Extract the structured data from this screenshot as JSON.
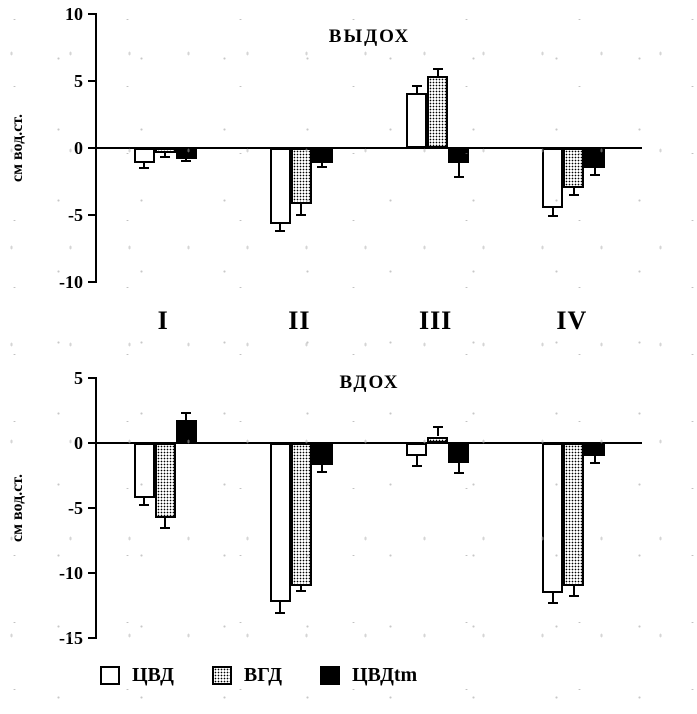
{
  "legend": {
    "items": [
      {
        "label": "ЦВД",
        "style": "white"
      },
      {
        "label": "ВГД",
        "style": "hatch"
      },
      {
        "label": "ЦВДtm",
        "style": "black"
      }
    ]
  },
  "chart_data": [
    {
      "type": "bar",
      "title": "ВЫДОХ",
      "ylabel": "см вод.ст.",
      "ylim": [
        -10,
        10
      ],
      "yticks": [
        10,
        5,
        0,
        -5,
        -10
      ],
      "categories": [
        "I",
        "II",
        "III",
        "IV"
      ],
      "show_category_labels": true,
      "grid": false,
      "legend_position": "bottom",
      "series": [
        {
          "name": "ЦВД",
          "style": "white",
          "values": [
            -1.1,
            -5.7,
            4.1,
            -4.5
          ],
          "errors": [
            0.4,
            0.5,
            0.5,
            0.6
          ]
        },
        {
          "name": "ВГД",
          "style": "hatch",
          "values": [
            -0.4,
            -4.2,
            5.4,
            -3.0
          ],
          "errors": [
            0.3,
            0.8,
            0.5,
            0.5
          ]
        },
        {
          "name": "ЦВДtm",
          "style": "black",
          "values": [
            -0.8,
            -1.1,
            -1.1,
            -1.5
          ],
          "errors": [
            0.2,
            0.3,
            1.1,
            0.5
          ]
        }
      ]
    },
    {
      "type": "bar",
      "title": "ВДОХ",
      "ylabel": "см вод.ст.",
      "ylim": [
        -15,
        5
      ],
      "yticks": [
        5,
        0,
        -5,
        -10,
        -15
      ],
      "categories": [
        "I",
        "II",
        "III",
        "IV"
      ],
      "show_category_labels": false,
      "grid": false,
      "legend_position": "bottom",
      "series": [
        {
          "name": "ЦВД",
          "style": "white",
          "values": [
            -4.2,
            -12.2,
            -1.0,
            -11.5
          ],
          "errors": [
            0.6,
            0.9,
            0.8,
            0.8
          ]
        },
        {
          "name": "ВГД",
          "style": "hatch",
          "values": [
            -5.8,
            -11.0,
            0.5,
            -11.0
          ],
          "errors": [
            0.7,
            0.4,
            0.7,
            0.8
          ]
        },
        {
          "name": "ЦВДtm",
          "style": "black",
          "values": [
            1.8,
            -1.7,
            -1.5,
            -1.0
          ],
          "errors": [
            0.5,
            0.5,
            0.8,
            0.5
          ]
        }
      ]
    }
  ]
}
